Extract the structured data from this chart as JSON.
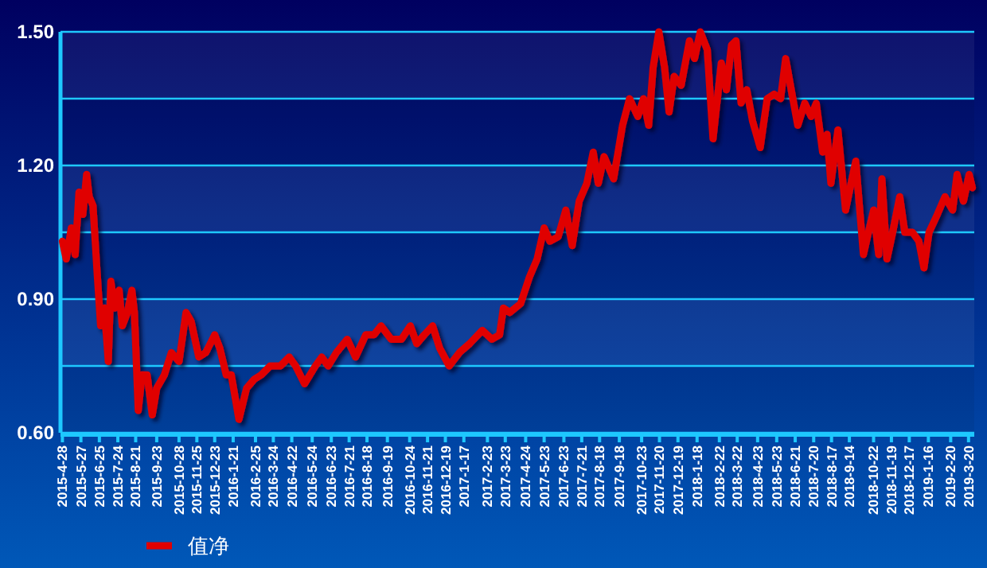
{
  "chart_data": {
    "type": "line",
    "ylim": [
      0.6,
      1.5
    ],
    "yticks": [
      {
        "value": 0.6,
        "label": "0.60"
      },
      {
        "value": 0.75,
        "label": null
      },
      {
        "value": 0.9,
        "label": "0.90"
      },
      {
        "value": 1.05,
        "label": null
      },
      {
        "value": 1.2,
        "label": "1.20"
      },
      {
        "value": 1.35,
        "label": null
      },
      {
        "value": 1.5,
        "label": "1.50"
      }
    ],
    "xlim": [
      "2015-04-25",
      "2019-03-29"
    ],
    "xticks": [
      {
        "value": "2015-04-28",
        "label": "2015-4-28"
      },
      {
        "value": "2015-05-27",
        "label": "2015-5-27"
      },
      {
        "value": "2015-06-25",
        "label": "2015-6-25"
      },
      {
        "value": "2015-07-24",
        "label": "2015-7-24"
      },
      {
        "value": "2015-08-21",
        "label": "2015-8-21"
      },
      {
        "value": "2015-09-23",
        "label": "2015-9-23"
      },
      {
        "value": "2015-10-28",
        "label": "2015-10-28"
      },
      {
        "value": "2015-11-25",
        "label": "2015-11-25"
      },
      {
        "value": "2015-12-23",
        "label": "2015-12-23"
      },
      {
        "value": "2016-01-21",
        "label": "2016-1-21"
      },
      {
        "value": "2016-02-25",
        "label": "2016-2-25"
      },
      {
        "value": "2016-03-24",
        "label": "2016-3-24"
      },
      {
        "value": "2016-04-22",
        "label": "2016-4-22"
      },
      {
        "value": "2016-05-24",
        "label": "2016-5-24"
      },
      {
        "value": "2016-06-23",
        "label": "2016-6-23"
      },
      {
        "value": "2016-07-21",
        "label": "2016-7-21"
      },
      {
        "value": "2016-08-18",
        "label": "2016-8-18"
      },
      {
        "value": "2016-09-19",
        "label": "2016-9-19"
      },
      {
        "value": "2016-10-24",
        "label": "2016-10-24"
      },
      {
        "value": "2016-11-21",
        "label": "2016-11-21"
      },
      {
        "value": "2016-12-19",
        "label": "2016-12-19"
      },
      {
        "value": "2017-01-17",
        "label": "2017-1-17"
      },
      {
        "value": "2017-02-23",
        "label": "2017-2-23"
      },
      {
        "value": "2017-03-23",
        "label": "2017-3-23"
      },
      {
        "value": "2017-04-24",
        "label": "2017-4-24"
      },
      {
        "value": "2017-05-23",
        "label": "2017-5-23"
      },
      {
        "value": "2017-06-23",
        "label": "2017-6-23"
      },
      {
        "value": "2017-07-21",
        "label": "2017-7-21"
      },
      {
        "value": "2017-08-18",
        "label": "2017-8-18"
      },
      {
        "value": "2017-09-18",
        "label": "2017-9-18"
      },
      {
        "value": "2017-10-23",
        "label": "2017-10-23"
      },
      {
        "value": "2017-11-20",
        "label": "2017-11-20"
      },
      {
        "value": "2017-12-19",
        "label": "2017-12-19"
      },
      {
        "value": "2018-01-18",
        "label": "2018-1-18"
      },
      {
        "value": "2018-02-22",
        "label": "2018-2-22"
      },
      {
        "value": "2018-03-22",
        "label": "2018-3-22"
      },
      {
        "value": "2018-04-23",
        "label": "2018-4-23"
      },
      {
        "value": "2018-05-23",
        "label": "2018-5-23"
      },
      {
        "value": "2018-06-21",
        "label": "2018-6-21"
      },
      {
        "value": "2018-07-20",
        "label": "2018-7-20"
      },
      {
        "value": "2018-08-17",
        "label": "2018-8-17"
      },
      {
        "value": "2018-09-14",
        "label": "2018-9-14"
      },
      {
        "value": "2018-10-22",
        "label": "2018-10-22"
      },
      {
        "value": "2018-11-19",
        "label": "2018-11-19"
      },
      {
        "value": "2018-12-17",
        "label": "2018-12-17"
      },
      {
        "value": "2019-01-16",
        "label": "2019-1-16"
      },
      {
        "value": "2019-02-20",
        "label": "2019-2-20"
      },
      {
        "value": "2019-03-20",
        "label": "2019-3-20"
      }
    ],
    "grid": "y",
    "legend": "bottom left",
    "line_style": "solid",
    "marker": "none",
    "series": [
      {
        "name": "值净",
        "color": "#e00000",
        "x": [
          "2015-04-28",
          "2015-05-04",
          "2015-05-12",
          "2015-05-18",
          "2015-05-24",
          "2015-05-30",
          "2015-06-05",
          "2015-06-09",
          "2015-06-15",
          "2015-06-21",
          "2015-06-27",
          "2015-07-03",
          "2015-07-09",
          "2015-07-13",
          "2015-07-19",
          "2015-07-26",
          "2015-07-31",
          "2015-08-08",
          "2015-08-15",
          "2015-08-19",
          "2015-08-25",
          "2015-08-31",
          "2015-09-08",
          "2015-09-16",
          "2015-09-23",
          "2015-10-05",
          "2015-10-16",
          "2015-10-28",
          "2015-11-08",
          "2015-11-16",
          "2015-11-28",
          "2015-12-09",
          "2015-12-23",
          "2015-12-31",
          "2016-01-10",
          "2016-01-18",
          "2016-01-30",
          "2016-02-11",
          "2016-02-23",
          "2016-03-05",
          "2016-03-19",
          "2016-04-04",
          "2016-04-18",
          "2016-04-28",
          "2016-05-12",
          "2016-05-29",
          "2016-06-08",
          "2016-06-18",
          "2016-07-01",
          "2016-07-18",
          "2016-07-31",
          "2016-08-16",
          "2016-08-29",
          "2016-09-09",
          "2016-09-25",
          "2016-10-11",
          "2016-10-25",
          "2016-11-04",
          "2016-11-16",
          "2016-11-29",
          "2016-12-10",
          "2016-12-25",
          "2017-01-10",
          "2017-01-26",
          "2017-02-15",
          "2017-03-02",
          "2017-03-14",
          "2017-03-20",
          "2017-03-30",
          "2017-04-16",
          "2017-04-30",
          "2017-05-12",
          "2017-05-23",
          "2017-06-01",
          "2017-06-14",
          "2017-06-26",
          "2017-07-06",
          "2017-07-17",
          "2017-07-29",
          "2017-08-08",
          "2017-08-16",
          "2017-08-25",
          "2017-09-09",
          "2017-09-23",
          "2017-10-04",
          "2017-10-17",
          "2017-10-26",
          "2017-11-03",
          "2017-11-10",
          "2017-11-19",
          "2017-11-28",
          "2017-12-05",
          "2017-12-13",
          "2017-12-24",
          "2018-01-06",
          "2018-01-14",
          "2018-01-23",
          "2018-02-03",
          "2018-02-12",
          "2018-02-25",
          "2018-03-05",
          "2018-03-13",
          "2018-03-20",
          "2018-03-28",
          "2018-04-06",
          "2018-04-15",
          "2018-04-27",
          "2018-05-08",
          "2018-05-19",
          "2018-05-29",
          "2018-06-06",
          "2018-06-16",
          "2018-06-25",
          "2018-07-06",
          "2018-07-16",
          "2018-07-24",
          "2018-08-03",
          "2018-08-10",
          "2018-08-16",
          "2018-08-27",
          "2018-09-08",
          "2018-09-24",
          "2018-10-06",
          "2018-10-22",
          "2018-10-30",
          "2018-11-04",
          "2018-11-12",
          "2018-11-21",
          "2018-12-02",
          "2018-12-10",
          "2018-12-22",
          "2019-01-01",
          "2019-01-09",
          "2019-01-17",
          "2019-01-30",
          "2019-02-11",
          "2019-02-23",
          "2019-03-02",
          "2019-03-12",
          "2019-03-21",
          "2019-03-26"
        ],
        "values": [
          1.03,
          0.99,
          1.06,
          1.0,
          1.14,
          1.09,
          1.18,
          1.13,
          1.11,
          0.97,
          0.84,
          0.88,
          0.76,
          0.94,
          0.88,
          0.92,
          0.84,
          0.87,
          0.92,
          0.87,
          0.65,
          0.73,
          0.73,
          0.64,
          0.7,
          0.73,
          0.78,
          0.76,
          0.87,
          0.85,
          0.77,
          0.78,
          0.82,
          0.79,
          0.73,
          0.73,
          0.63,
          0.7,
          0.72,
          0.73,
          0.75,
          0.75,
          0.77,
          0.75,
          0.71,
          0.75,
          0.77,
          0.75,
          0.78,
          0.81,
          0.77,
          0.82,
          0.82,
          0.84,
          0.81,
          0.81,
          0.84,
          0.8,
          0.82,
          0.84,
          0.79,
          0.75,
          0.78,
          0.8,
          0.83,
          0.81,
          0.82,
          0.88,
          0.87,
          0.89,
          0.95,
          0.99,
          1.06,
          1.03,
          1.04,
          1.1,
          1.02,
          1.12,
          1.16,
          1.23,
          1.16,
          1.22,
          1.17,
          1.29,
          1.35,
          1.31,
          1.35,
          1.29,
          1.42,
          1.5,
          1.42,
          1.32,
          1.4,
          1.38,
          1.48,
          1.44,
          1.5,
          1.46,
          1.26,
          1.43,
          1.37,
          1.47,
          1.48,
          1.34,
          1.37,
          1.3,
          1.24,
          1.35,
          1.36,
          1.35,
          1.44,
          1.36,
          1.29,
          1.34,
          1.31,
          1.34,
          1.23,
          1.27,
          1.16,
          1.28,
          1.1,
          1.21,
          1.0,
          1.1,
          1.0,
          1.17,
          0.99,
          1.05,
          1.13,
          1.05,
          1.05,
          1.03,
          0.97,
          1.05,
          1.09,
          1.13,
          1.1,
          1.18,
          1.12,
          1.18,
          1.15
        ]
      }
    ]
  }
}
